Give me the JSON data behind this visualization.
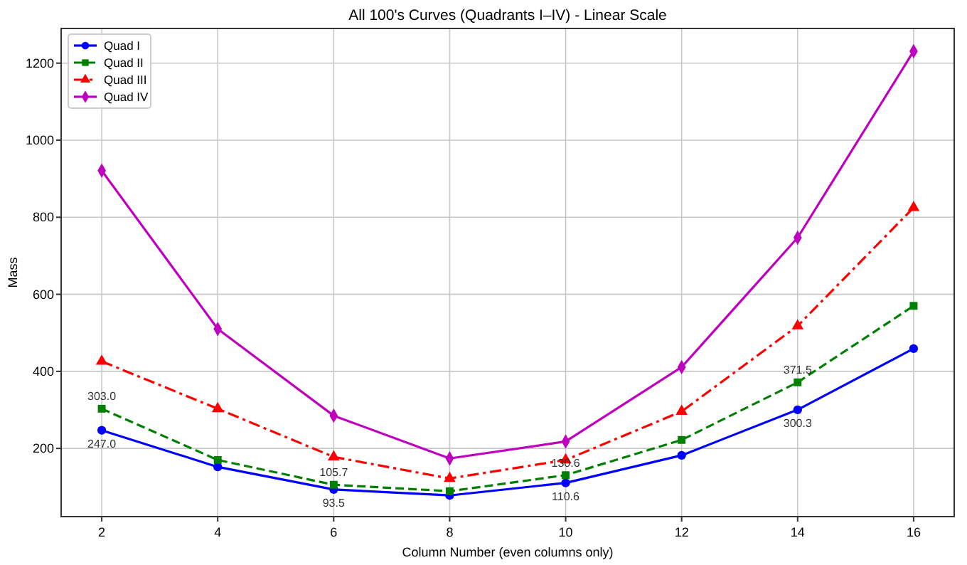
{
  "chart_data": {
    "type": "line",
    "title": "All 100's Curves (Quadrants I–IV) - Linear Scale",
    "xlabel": "Column Number (even columns only)",
    "ylabel": "Mass",
    "x": [
      2,
      4,
      6,
      8,
      10,
      12,
      14,
      16
    ],
    "series": [
      {
        "name": "Quad I",
        "color": "#0000ff",
        "marker": "circle",
        "line_style": "solid",
        "values": [
          247,
          152,
          93.5,
          78,
          110.6,
          182,
          300.3,
          459
        ]
      },
      {
        "name": "Quad II",
        "color": "#008000",
        "marker": "square",
        "line_style": "dashed",
        "values": [
          303,
          170,
          105.7,
          89,
          130.6,
          222,
          371.5,
          570
        ]
      },
      {
        "name": "Quad III",
        "color": "#ff0000",
        "marker": "triangle",
        "line_style": "dashdot",
        "values": [
          426,
          303,
          178,
          122,
          170,
          296,
          518,
          825
        ]
      },
      {
        "name": "Quad IV",
        "color": "#bf00bf",
        "marker": "diamond",
        "line_style": "solid",
        "values": [
          921,
          510,
          285,
          174,
          218,
          411,
          747,
          1231
        ]
      }
    ],
    "annotations": [
      {
        "text": "247.0",
        "x": 2,
        "y": 247
      },
      {
        "text": "303.0",
        "x": 2,
        "y": 303
      },
      {
        "text": "93.5",
        "x": 6,
        "y": 93.5
      },
      {
        "text": "105.7",
        "x": 6,
        "y": 105.7
      },
      {
        "text": "110.6",
        "x": 10,
        "y": 110.6
      },
      {
        "text": "130.6",
        "x": 10,
        "y": 130.6
      },
      {
        "text": "300.3",
        "x": 14,
        "y": 300.3
      },
      {
        "text": "371.5",
        "x": 14,
        "y": 371.5
      }
    ],
    "xlim": [
      1.3,
      16.7
    ],
    "ylim": [
      23,
      1290
    ],
    "xticks": [
      2,
      4,
      6,
      8,
      10,
      12,
      14,
      16
    ],
    "yticks": [
      200,
      400,
      600,
      800,
      1000,
      1200
    ],
    "grid": true,
    "legend": "top left"
  }
}
